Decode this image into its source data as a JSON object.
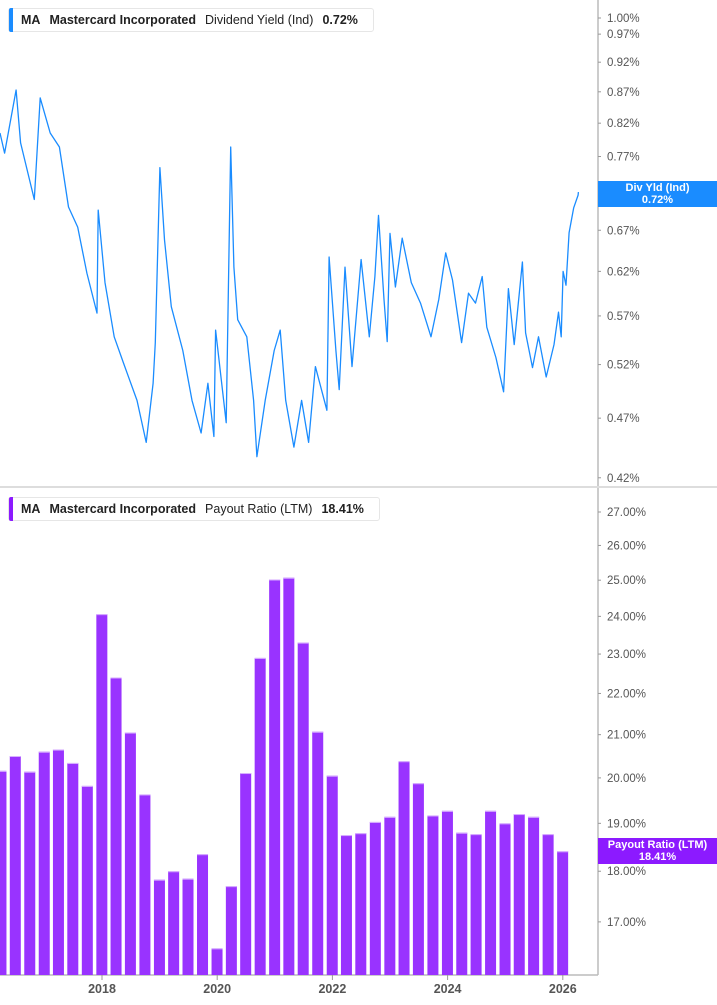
{
  "colors": {
    "yield_line": "#1a8cff",
    "payout_bars": "#9933ff",
    "payout_tag": "#8c1aff",
    "yield_tag": "#1a8cff"
  },
  "top_legend": {
    "ticker": "MA",
    "company": "Mastercard Incorporated",
    "metric": "Dividend Yield (Ind)",
    "value": "0.72%"
  },
  "bottom_legend": {
    "ticker": "MA",
    "company": "Mastercard Incorporated",
    "metric": "Payout Ratio (LTM)",
    "value": "18.41%"
  },
  "top_tag": {
    "label": "Div Yld (Ind)",
    "value": "0.72%"
  },
  "bottom_tag": {
    "label": "Payout Ratio (LTM)",
    "value": "18.41%"
  },
  "chart_data": [
    {
      "type": "line",
      "series": [
        {
          "name": "Dividend Yield (Ind)",
          "unit": "%",
          "points": [
            [
              "2016-03-25",
              0.805
            ],
            [
              "2016-04-23",
              0.775
            ],
            [
              "2016-07-05",
              0.873
            ],
            [
              "2016-08-03",
              0.79
            ],
            [
              "2016-10-29",
              0.71
            ],
            [
              "2016-12-05",
              0.86
            ],
            [
              "2017-02-07",
              0.805
            ],
            [
              "2017-04-06",
              0.784
            ],
            [
              "2017-06-03",
              0.7
            ],
            [
              "2017-07-31",
              0.674
            ],
            [
              "2017-09-27",
              0.618
            ],
            [
              "2017-11-30",
              0.573
            ],
            [
              "2017-12-08",
              0.696
            ],
            [
              "2018-01-20",
              0.607
            ],
            [
              "2018-03-19",
              0.548
            ],
            [
              "2018-05-16",
              0.522
            ],
            [
              "2018-08-11",
              0.486
            ],
            [
              "2018-10-08",
              0.449
            ],
            [
              "2018-11-21",
              0.502
            ],
            [
              "2018-12-05",
              0.542
            ],
            [
              "2019-01-03",
              0.754
            ],
            [
              "2019-02-01",
              0.658
            ],
            [
              "2019-03-16",
              0.58
            ],
            [
              "2019-05-28",
              0.534
            ],
            [
              "2019-07-25",
              0.486
            ],
            [
              "2019-09-21",
              0.457
            ],
            [
              "2019-11-03",
              0.502
            ],
            [
              "2019-12-11",
              0.454
            ],
            [
              "2019-12-22",
              0.555
            ],
            [
              "2020-02-27",
              0.466
            ],
            [
              "2020-03-27",
              0.784
            ],
            [
              "2020-04-16",
              0.625
            ],
            [
              "2020-05-10",
              0.566
            ],
            [
              "2020-07-07",
              0.548
            ],
            [
              "2020-08-19",
              0.486
            ],
            [
              "2020-09-09",
              0.437
            ],
            [
              "2020-11-01",
              0.486
            ],
            [
              "2020-12-28",
              0.534
            ],
            [
              "2021-02-04",
              0.555
            ],
            [
              "2021-03-11",
              0.486
            ],
            [
              "2021-05-02",
              0.445
            ],
            [
              "2021-06-20",
              0.486
            ],
            [
              "2021-08-03",
              0.449
            ],
            [
              "2021-09-15",
              0.518
            ],
            [
              "2021-11-27",
              0.477
            ],
            [
              "2021-12-11",
              0.637
            ],
            [
              "2022-01-23",
              0.534
            ],
            [
              "2022-02-13",
              0.496
            ],
            [
              "2022-03-22",
              0.625
            ],
            [
              "2022-05-05",
              0.518
            ],
            [
              "2022-07-02",
              0.634
            ],
            [
              "2022-08-23",
              0.548
            ],
            [
              "2022-09-27",
              0.614
            ],
            [
              "2022-10-20",
              0.689
            ],
            [
              "2022-11-24",
              0.588
            ],
            [
              "2022-12-14",
              0.543
            ],
            [
              "2023-01-01",
              0.666
            ],
            [
              "2023-02-04",
              0.602
            ],
            [
              "2023-03-19",
              0.66
            ],
            [
              "2023-05-16",
              0.607
            ],
            [
              "2023-07-13",
              0.584
            ],
            [
              "2023-09-18",
              0.548
            ],
            [
              "2023-11-06",
              0.588
            ],
            [
              "2023-12-20",
              0.642
            ],
            [
              "2024-02-01",
              0.61
            ],
            [
              "2024-03-30",
              0.542
            ],
            [
              "2024-05-13",
              0.595
            ],
            [
              "2024-06-26",
              0.584
            ],
            [
              "2024-08-08",
              0.614
            ],
            [
              "2024-09-06",
              0.558
            ],
            [
              "2024-11-03",
              0.527
            ],
            [
              "2024-12-22",
              0.494
            ],
            [
              "2025-01-21",
              0.6
            ],
            [
              "2025-02-27",
              0.54
            ],
            [
              "2025-04-20",
              0.631
            ],
            [
              "2025-05-10",
              0.552
            ],
            [
              "2025-06-23",
              0.517
            ],
            [
              "2025-07-31",
              0.548
            ],
            [
              "2025-09-18",
              0.508
            ],
            [
              "2025-11-06",
              0.54
            ],
            [
              "2025-12-05",
              0.574
            ],
            [
              "2025-12-22",
              0.548
            ],
            [
              "2026-01-03",
              0.62
            ],
            [
              "2026-01-21",
              0.604
            ],
            [
              "2026-02-10",
              0.667
            ],
            [
              "2026-03-11",
              0.699
            ],
            [
              "2026-04-08",
              0.716
            ],
            [
              "2026-04-10",
              0.72
            ]
          ]
        }
      ],
      "y_scale": "log",
      "ylim": [
        0.42,
        1.02
      ],
      "y_ticks": [
        1.0,
        0.97,
        0.92,
        0.87,
        0.82,
        0.77,
        0.72,
        0.67,
        0.62,
        0.57,
        0.52,
        0.47,
        0.42
      ],
      "y_tick_labels": [
        "1.00%",
        "0.97%",
        "0.92%",
        "0.87%",
        "0.82%",
        "0.77%",
        "0.72%",
        "0.67%",
        "0.62%",
        "0.57%",
        "0.52%",
        "0.47%",
        "0.42%"
      ],
      "grid": false,
      "legend": "top-left"
    },
    {
      "type": "bar",
      "series": [
        {
          "name": "Payout Ratio (LTM)",
          "unit": "%"
        }
      ],
      "categories": [
        "2016-03-31",
        "2016-06-30",
        "2016-09-30",
        "2016-12-31",
        "2017-03-31",
        "2017-06-30",
        "2017-09-30",
        "2017-12-31",
        "2018-03-31",
        "2018-06-30",
        "2018-09-30",
        "2018-12-31",
        "2019-03-31",
        "2019-06-30",
        "2019-09-30",
        "2019-12-31",
        "2020-03-31",
        "2020-06-30",
        "2020-09-30",
        "2020-12-31",
        "2021-03-31",
        "2021-06-30",
        "2021-09-30",
        "2021-12-31",
        "2022-03-31",
        "2022-06-30",
        "2022-09-30",
        "2022-12-31",
        "2023-03-31",
        "2023-06-30",
        "2023-09-30",
        "2023-12-31",
        "2024-03-31",
        "2024-06-30",
        "2024-09-30",
        "2024-12-31",
        "2025-03-31",
        "2025-06-30",
        "2025-09-30",
        "2025-12-31"
      ],
      "values": [
        20.16,
        20.5,
        20.14,
        20.6,
        20.65,
        20.34,
        19.82,
        24.06,
        22.4,
        21.05,
        19.63,
        17.83,
        18.0,
        17.85,
        18.35,
        16.5,
        17.7,
        20.11,
        22.9,
        25.02,
        25.07,
        23.3,
        21.07,
        20.05,
        18.75,
        18.79,
        19.03,
        19.14,
        20.38,
        19.88,
        19.17,
        19.27,
        18.8,
        18.77,
        19.27,
        19.0,
        19.2,
        19.14,
        18.77,
        18.41
      ],
      "y_scale": "log",
      "ylim": [
        16.0,
        27.3
      ],
      "y_ticks": [
        27,
        26,
        25,
        24,
        23,
        22,
        21,
        20,
        19,
        18,
        17
      ],
      "y_tick_labels": [
        "27.00%",
        "26.00%",
        "25.00%",
        "24.00%",
        "23.00%",
        "22.00%",
        "21.00%",
        "20.00%",
        "19.00%",
        "18.00%",
        "17.00%"
      ],
      "x_tick_labels": [
        "2018",
        "2020",
        "2022",
        "2024",
        "2026"
      ],
      "grid": false,
      "legend": "top-left"
    }
  ]
}
